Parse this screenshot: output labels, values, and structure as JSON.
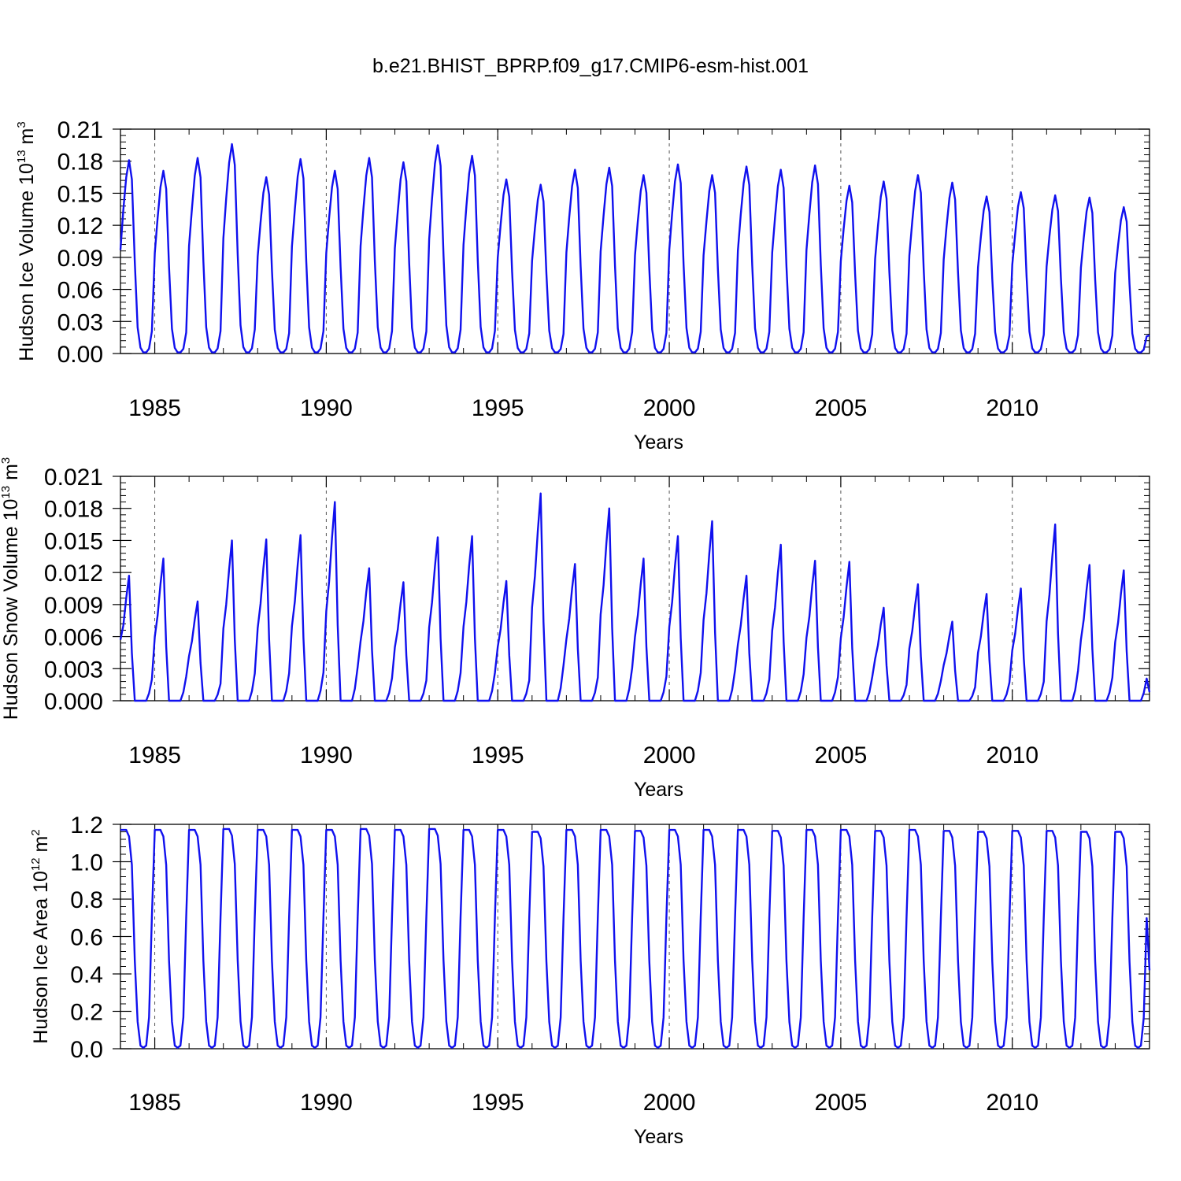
{
  "title": "b.e21.BHIST_BPRP.f09_g17.CMIP6-esm-hist.001",
  "colors": {
    "line": "#1010ee",
    "grid": "#555555"
  },
  "chart_data": [
    {
      "type": "line",
      "ylabel": "Hudson Ice Volume 10^13 m^3",
      "ylabel_base": "Hudson Ice Volume 10",
      "ylabel_exp": "13",
      "ylabel_unit": " m",
      "ylabel_unit_exp": "3",
      "xlabel": "Years",
      "xlim": [
        1984.0,
        2014.0
      ],
      "ylim": [
        0.0,
        0.21
      ],
      "yticks": [
        "0.00",
        "0.03",
        "0.06",
        "0.09",
        "0.12",
        "0.15",
        "0.18",
        "0.21"
      ],
      "xticks": [
        "1985",
        "1990",
        "1995",
        "2000",
        "2005",
        "2010"
      ],
      "vgrid_years": [
        1985,
        1990,
        1995,
        2000,
        2005,
        2010
      ],
      "peaks": [
        0.181,
        0.171,
        0.183,
        0.196,
        0.165,
        0.182,
        0.171,
        0.183,
        0.179,
        0.195,
        0.185,
        0.163,
        0.158,
        0.172,
        0.174,
        0.167,
        0.177,
        0.167,
        0.175,
        0.172,
        0.176,
        0.157,
        0.161,
        0.167,
        0.16,
        0.147,
        0.151,
        0.148,
        0.146,
        0.137
      ],
      "minimum": 0.001,
      "january": 0.097,
      "profile": "volume"
    },
    {
      "type": "line",
      "ylabel": "Hudson Snow Volume 10^13 m^3",
      "ylabel_base": "Hudson Snow Volume 10",
      "ylabel_exp": "13",
      "ylabel_unit": " m",
      "ylabel_unit_exp": "3",
      "xlabel": "Years",
      "xlim": [
        1984.0,
        2014.0
      ],
      "ylim": [
        0.0,
        0.021
      ],
      "yticks": [
        "0.000",
        "0.003",
        "0.006",
        "0.009",
        "0.012",
        "0.015",
        "0.018",
        "0.021"
      ],
      "xticks": [
        "1985",
        "1990",
        "1995",
        "2000",
        "2005",
        "2010"
      ],
      "vgrid_years": [
        1985,
        1990,
        1995,
        2000,
        2005,
        2010
      ],
      "peaks": [
        0.0117,
        0.0133,
        0.0093,
        0.015,
        0.0151,
        0.0155,
        0.0186,
        0.0124,
        0.0111,
        0.0153,
        0.0154,
        0.0112,
        0.0194,
        0.0128,
        0.018,
        0.0133,
        0.0154,
        0.0168,
        0.0117,
        0.0146,
        0.0131,
        0.013,
        0.0087,
        0.0109,
        0.0074,
        0.01,
        0.0105,
        0.0165,
        0.0127,
        0.0122
      ],
      "minimum": 0.0,
      "january": 0.0057,
      "profile": "snow"
    },
    {
      "type": "line",
      "ylabel": "Hudson Ice Area 10^12 m^2",
      "ylabel_base": "Hudson Ice Area 10",
      "ylabel_exp": "12",
      "ylabel_unit": " m",
      "ylabel_unit_exp": "2",
      "xlabel": "Years",
      "xlim": [
        1984.0,
        2014.0
      ],
      "ylim": [
        0.0,
        1.2
      ],
      "yticks": [
        "0.0",
        "0.2",
        "0.4",
        "0.6",
        "0.8",
        "1.0",
        "1.2"
      ],
      "xticks": [
        "1985",
        "1990",
        "1995",
        "2000",
        "2005",
        "2010"
      ],
      "vgrid_years": [
        1985,
        1990,
        1995,
        2000,
        2005,
        2010
      ],
      "peaks": [
        1.17,
        1.17,
        1.17,
        1.175,
        1.17,
        1.17,
        1.17,
        1.175,
        1.17,
        1.175,
        1.17,
        1.17,
        1.16,
        1.17,
        1.17,
        1.165,
        1.17,
        1.17,
        1.17,
        1.165,
        1.17,
        1.17,
        1.165,
        1.17,
        1.165,
        1.16,
        1.165,
        1.165,
        1.16,
        1.16
      ],
      "minimum": 0.005,
      "january": 1.165,
      "profile": "area"
    }
  ]
}
